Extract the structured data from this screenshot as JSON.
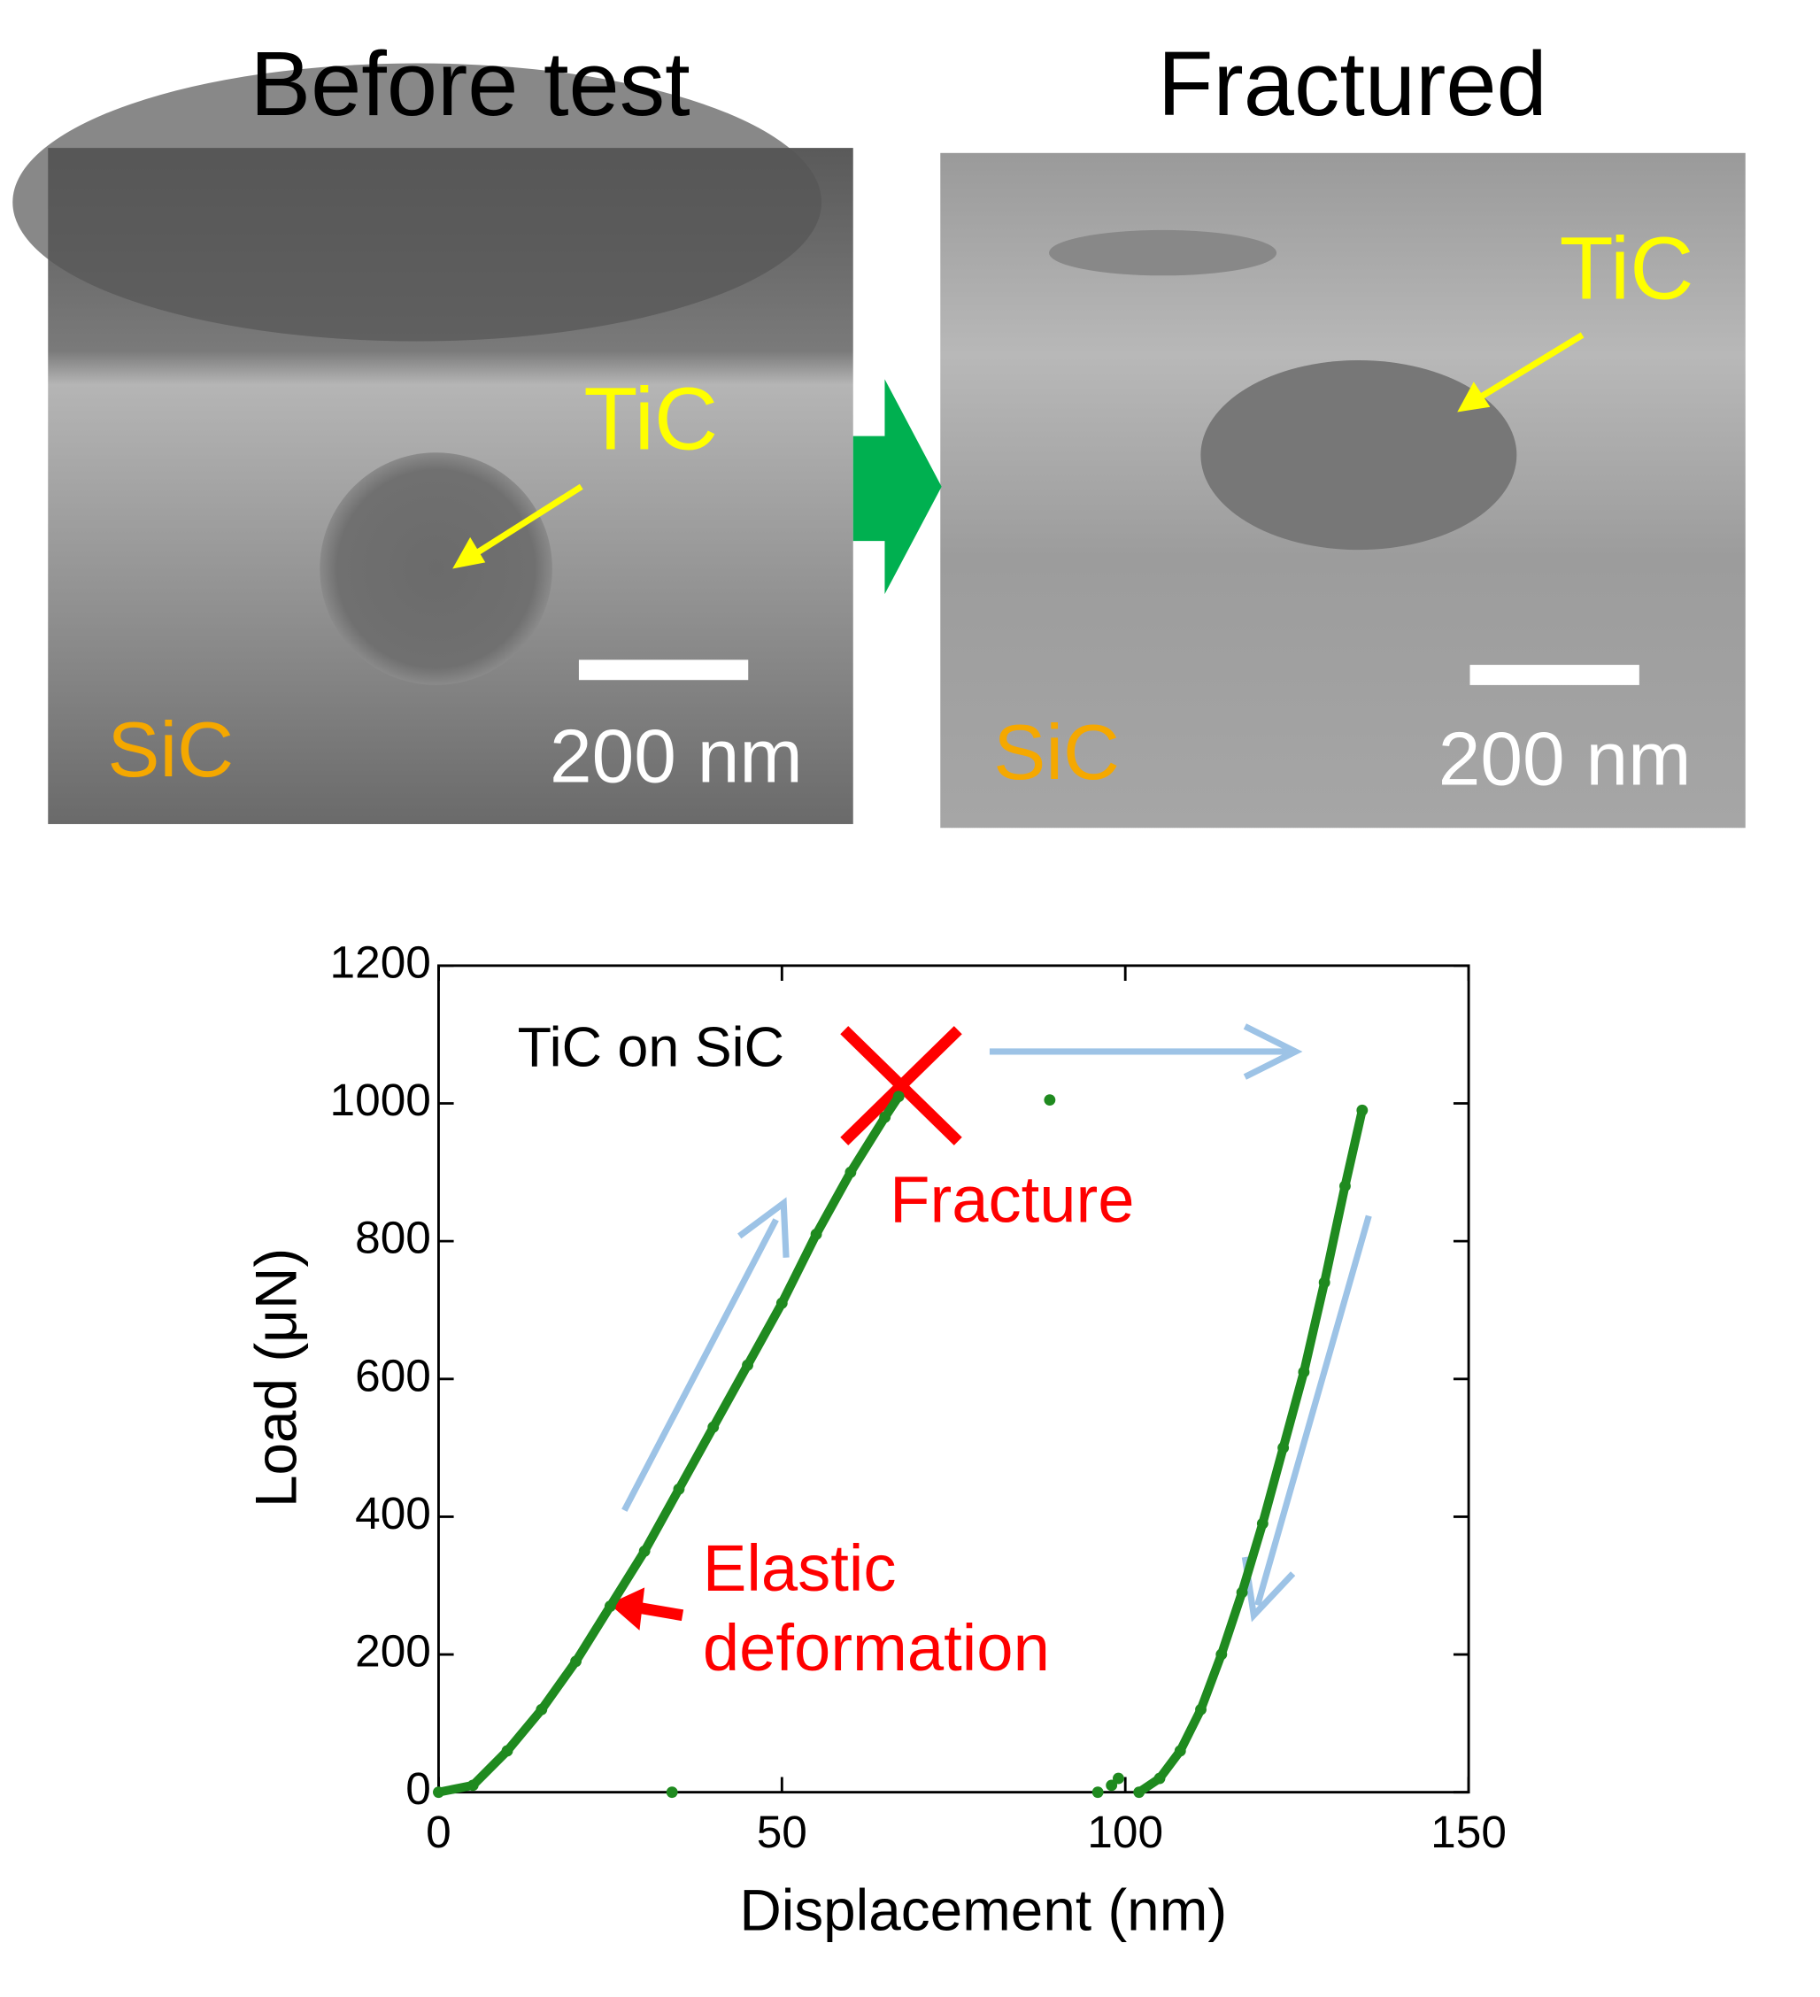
{
  "panels": [
    {
      "title": "Before test",
      "particle": "TiC",
      "matrix": "SiC",
      "scale": "200 nm"
    },
    {
      "title": "Fractured",
      "particle": "TiC",
      "matrix": "SiC",
      "scale": "200 nm"
    }
  ],
  "chart_data": {
    "type": "scatter",
    "x_label": "Displacement (nm)",
    "y_label": "Load (μN)",
    "annotations": [
      "TiC on SiC",
      "Fracture",
      "Elastic",
      "deformation"
    ],
    "xlim": [
      0,
      150
    ],
    "ylim": [
      0,
      1200
    ],
    "xticks": [
      0,
      50,
      100,
      150
    ],
    "yticks": [
      0,
      200,
      400,
      600,
      800,
      1000,
      1200
    ],
    "series": [
      {
        "color": "#1f8a1f",
        "mode": "lines+markers",
        "x": [
          0,
          5,
          10,
          15,
          20,
          25,
          30,
          35,
          40,
          45,
          50,
          55,
          60,
          65,
          67
        ],
        "values": [
          0,
          10,
          60,
          120,
          190,
          270,
          350,
          440,
          530,
          620,
          710,
          810,
          900,
          980,
          1010
        ]
      },
      {
        "color": "#1f8a1f",
        "mode": "lines+markers",
        "x": [
          102,
          105,
          108,
          111,
          114,
          117,
          120,
          123,
          126,
          129,
          132,
          134.5
        ],
        "values": [
          0,
          20,
          60,
          120,
          200,
          290,
          390,
          500,
          610,
          740,
          880,
          990
        ]
      },
      {
        "color": "#1f8a1f",
        "mode": "markers",
        "x": [
          34,
          89,
          96,
          98,
          99
        ],
        "values": [
          0,
          1005,
          0,
          10,
          20
        ]
      }
    ]
  }
}
